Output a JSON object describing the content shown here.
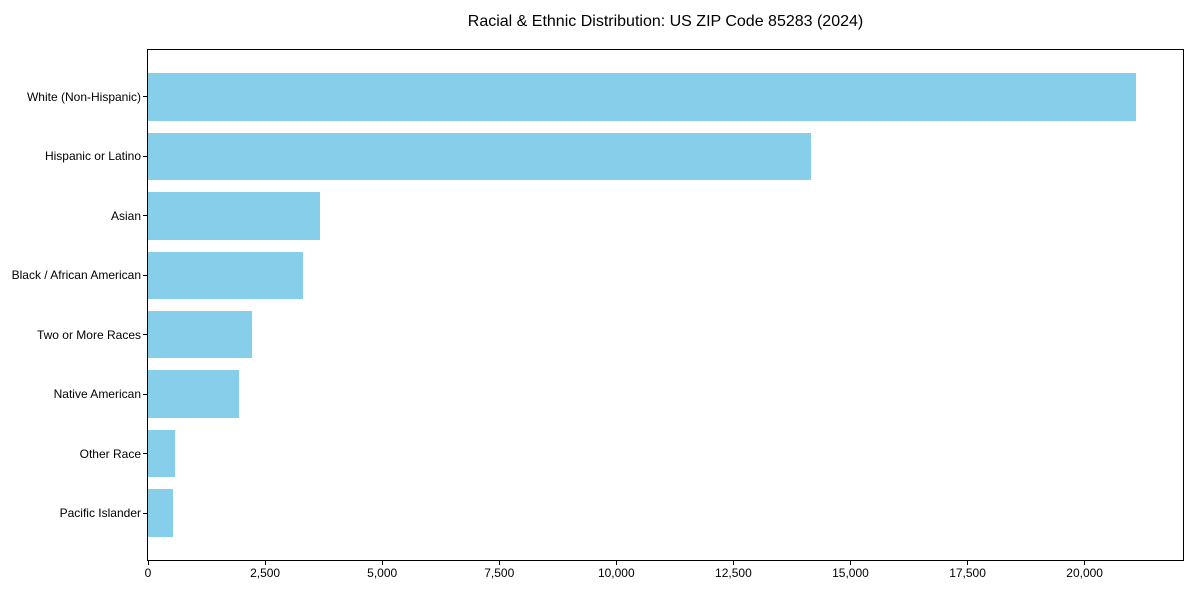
{
  "figure": {
    "background": "#ffffff"
  },
  "chart_data": {
    "type": "bar",
    "orientation": "horizontal",
    "title": "Racial & Ethnic Distribution: US ZIP Code 85283 (2024)",
    "categories": [
      "White (Non-Hispanic)",
      "Hispanic or Latino",
      "Asian",
      "Black / African American",
      "Two or More Races",
      "Native American",
      "Other Race",
      "Pacific Islander"
    ],
    "values": [
      21100,
      14150,
      3670,
      3310,
      2220,
      1940,
      580,
      530
    ],
    "xlabel": "",
    "ylabel": "",
    "xlim": [
      0,
      22100
    ],
    "x_ticks": [
      0,
      2500,
      5000,
      7500,
      10000,
      12500,
      15000,
      17500,
      20000
    ],
    "x_tick_labels": [
      "0",
      "2,500",
      "5,000",
      "7,500",
      "10,000",
      "12,500",
      "15,000",
      "17,500",
      "20,000"
    ],
    "bar_color": "#87CEEB",
    "axis_color": "#000000",
    "text_color": "#000000",
    "grid": false,
    "legend_position": "none"
  }
}
